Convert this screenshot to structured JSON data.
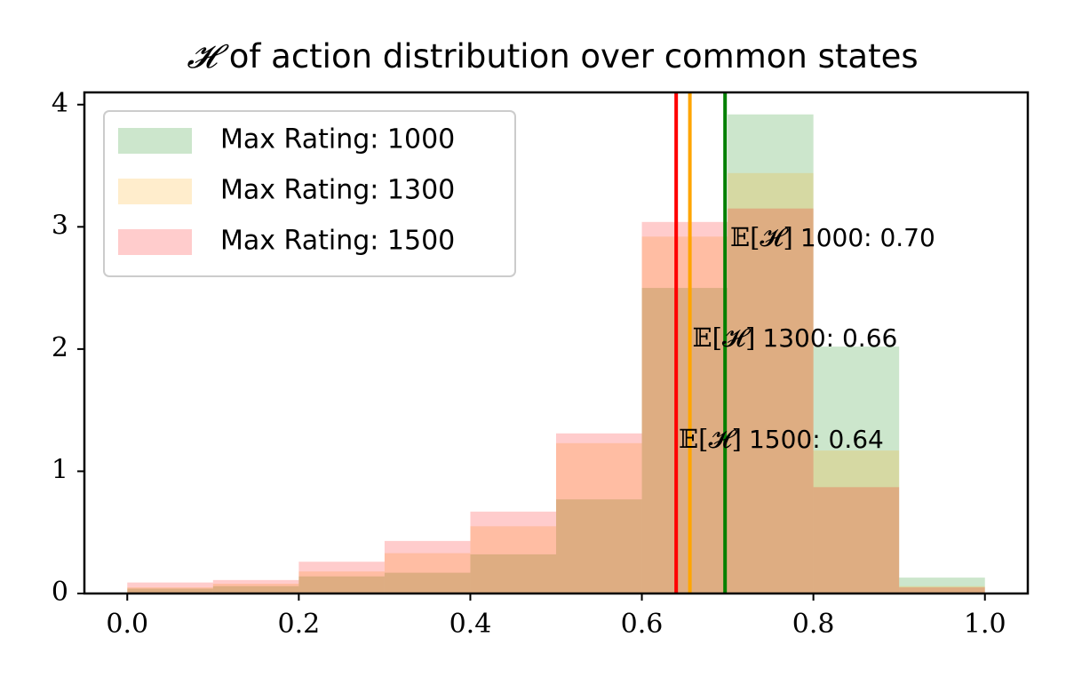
{
  "chart_data": {
    "type": "bar",
    "title_symbol": "𝓗",
    "title": "of action distribution over common states",
    "xlabel": "",
    "ylabel": "",
    "xlim": [
      -0.05,
      1.05
    ],
    "ylim": [
      0,
      4.1
    ],
    "xticks": [
      "0.0",
      "0.2",
      "0.4",
      "0.6",
      "0.8",
      "1.0"
    ],
    "yticks": [
      "0",
      "1",
      "2",
      "3",
      "4"
    ],
    "grid": false,
    "legend_position": "upper-left",
    "bin_edges": [
      0.0,
      0.1,
      0.2,
      0.3,
      0.4,
      0.5,
      0.6,
      0.7,
      0.8,
      0.9,
      1.0
    ],
    "series": [
      {
        "name": "Max Rating: 1000",
        "color": "#008000",
        "opacity": 0.2,
        "values": [
          0.04,
          0.06,
          0.14,
          0.17,
          0.32,
          0.77,
          2.5,
          3.92,
          2.02,
          0.13
        ],
        "mean_label_symbol": "𝔼[𝓗]",
        "mean_label": "1000: 0.70",
        "mean": 0.7
      },
      {
        "name": "Max Rating: 1300",
        "color": "#ffa500",
        "opacity": 0.2,
        "values": [
          0.05,
          0.08,
          0.18,
          0.33,
          0.55,
          1.23,
          2.92,
          3.44,
          1.17,
          0.06
        ],
        "mean_label_symbol": "𝔼[𝓗]",
        "mean_label": "1300: 0.66",
        "mean": 0.656
      },
      {
        "name": "Max Rating: 1500",
        "color": "#ff0000",
        "opacity": 0.2,
        "values": [
          0.09,
          0.11,
          0.26,
          0.43,
          0.67,
          1.31,
          3.04,
          3.15,
          0.87,
          0.05
        ],
        "mean_label_symbol": "𝔼[𝓗]",
        "mean_label": "1500: 0.64",
        "mean": 0.64
      }
    ],
    "mean_lines": [
      {
        "x": 0.64,
        "color": "#ff0000"
      },
      {
        "x": 0.656,
        "color": "#ffa500"
      },
      {
        "x": 0.697,
        "color": "#008000"
      }
    ],
    "annotations": [
      {
        "series": 0,
        "x": 0.703,
        "y": 2.9
      },
      {
        "series": 1,
        "x": 0.659,
        "y": 2.08
      },
      {
        "series": 2,
        "x": 0.643,
        "y": 1.25
      }
    ]
  }
}
